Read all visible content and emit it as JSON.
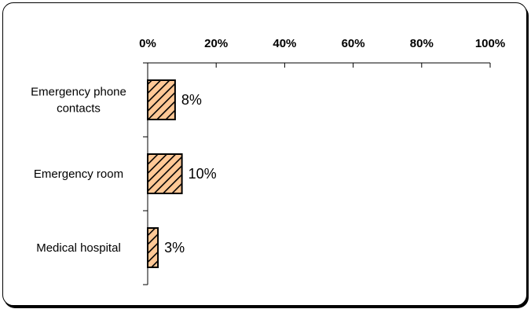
{
  "chart_data": {
    "type": "bar",
    "orientation": "horizontal",
    "categories": [
      [
        "Emergency phone",
        "contacts"
      ],
      [
        "Emergency room"
      ],
      [
        "Medical hospital"
      ]
    ],
    "values": [
      8,
      10,
      3
    ],
    "value_labels": [
      "8%",
      "10%",
      "3%"
    ],
    "xlim": [
      0,
      100
    ],
    "x_ticks": [
      0,
      20,
      40,
      60,
      80,
      100
    ],
    "x_tick_labels": [
      "0%",
      "20%",
      "40%",
      "60%",
      "80%",
      "100%"
    ],
    "x_axis_position": "top",
    "grid": false,
    "legend": "none",
    "title": "",
    "xlabel": "",
    "ylabel": "",
    "bar_fill": "#FFC896",
    "bar_hatch": "#000000"
  }
}
